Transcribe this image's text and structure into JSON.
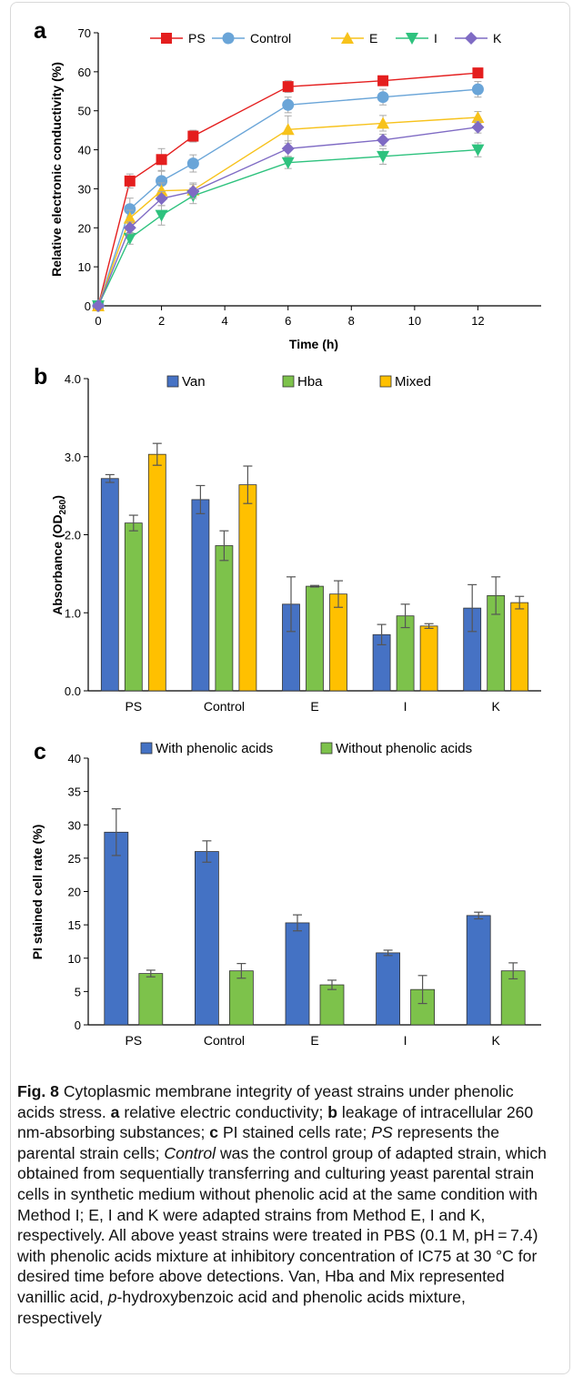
{
  "colors": {
    "ps": "#e41e1e",
    "control": "#6aa5d8",
    "e": "#f7c21b",
    "i": "#2ec27e",
    "k": "#7f6bc4",
    "van": "#4672c4",
    "hba": "#7dc24b",
    "mixed": "#ffc000",
    "with": "#4472c4",
    "without": "#7dc24b",
    "error_bar": "#555555",
    "axis": "#000000"
  },
  "panel_a": {
    "letter": "a",
    "chart_data": {
      "type": "line",
      "ylabel": "Relative electronic conductivity (%)",
      "xlabel": "Time (h)",
      "xlim": [
        0,
        14
      ],
      "ylim": [
        0,
        70
      ],
      "xticks": [
        0,
        2,
        4,
        6,
        8,
        10,
        12
      ],
      "yticks": [
        0,
        10,
        20,
        30,
        40,
        50,
        60,
        70
      ],
      "x": [
        0,
        1,
        2,
        3,
        6,
        9,
        12
      ],
      "legend_position": "top",
      "series": [
        {
          "name": "PS",
          "key": "ps",
          "marker": "square",
          "values": [
            0,
            32,
            37.5,
            43.5,
            56.2,
            57.7,
            59.7
          ],
          "err": [
            0,
            1.8,
            2.8,
            1.5,
            1.5,
            1.0,
            0.8
          ]
        },
        {
          "name": "Control",
          "key": "control",
          "marker": "circle",
          "values": [
            0,
            24.8,
            32,
            36.5,
            51.5,
            53.5,
            55.5
          ],
          "err": [
            0,
            2.8,
            2.5,
            2.2,
            2.0,
            2.0,
            2.0
          ]
        },
        {
          "name": "E",
          "key": "e",
          "marker": "triangle-up",
          "values": [
            0,
            22.5,
            29.5,
            29.7,
            45.2,
            46.8,
            48.3
          ],
          "err": [
            0,
            2.0,
            2.0,
            1.8,
            3.5,
            2.0,
            1.5
          ]
        },
        {
          "name": "I",
          "key": "i",
          "marker": "triangle-down",
          "values": [
            0,
            17.3,
            23.2,
            28.2,
            36.7,
            38.3,
            40.0
          ],
          "err": [
            0,
            1.5,
            2.5,
            2.0,
            1.5,
            2.0,
            1.8
          ]
        },
        {
          "name": "K",
          "key": "k",
          "marker": "diamond",
          "values": [
            0,
            20.0,
            27.5,
            29.3,
            40.3,
            42.5,
            45.8
          ],
          "err": [
            0,
            1.5,
            1.8,
            1.8,
            2.0,
            1.5,
            1.5
          ]
        }
      ]
    }
  },
  "panel_b": {
    "letter": "b",
    "chart_data": {
      "type": "bar",
      "ylabel": "Absorbance (OD",
      "ylabel_sub": "260",
      "ylabel_close": ")",
      "categories": [
        "PS",
        "Control",
        "E",
        "I",
        "K"
      ],
      "ylim": [
        0,
        4.0
      ],
      "yticks": [
        "0.0",
        "1.0",
        "2.0",
        "3.0",
        "4.0"
      ],
      "legend_position": "top",
      "series": [
        {
          "name": "Van",
          "key": "van",
          "values": [
            2.72,
            2.45,
            1.11,
            0.72,
            1.06
          ],
          "err": [
            0.05,
            0.18,
            0.35,
            0.13,
            0.3
          ]
        },
        {
          "name": "Hba",
          "key": "hba",
          "values": [
            2.15,
            1.86,
            1.34,
            0.96,
            1.22
          ],
          "err": [
            0.1,
            0.19,
            0.01,
            0.15,
            0.24
          ]
        },
        {
          "name": "Mixed",
          "key": "mixed",
          "values": [
            3.03,
            2.64,
            1.24,
            0.83,
            1.13
          ],
          "err": [
            0.14,
            0.24,
            0.17,
            0.03,
            0.08
          ]
        }
      ]
    }
  },
  "panel_c": {
    "letter": "c",
    "chart_data": {
      "type": "bar",
      "ylabel": "PI stained cell rate (%)",
      "categories": [
        "PS",
        "Control",
        "E",
        "I",
        "K"
      ],
      "ylim": [
        0,
        40
      ],
      "yticks": [
        0,
        5,
        10,
        15,
        20,
        25,
        30,
        35,
        40
      ],
      "legend_position": "top",
      "series": [
        {
          "name": "With phenolic acids",
          "key": "with",
          "values": [
            28.9,
            26.0,
            15.3,
            10.8,
            16.4
          ],
          "err": [
            3.5,
            1.6,
            1.2,
            0.4,
            0.5
          ]
        },
        {
          "name": "Without phenolic acids",
          "key": "without",
          "values": [
            7.7,
            8.1,
            6.0,
            5.3,
            8.1
          ],
          "err": [
            0.5,
            1.1,
            0.7,
            2.1,
            1.2
          ]
        }
      ]
    }
  },
  "caption": {
    "lead": "Fig. 8",
    "text1": "Cytoplasmic membrane integrity of yeast strains under phenolic acids stress.",
    "a": "a",
    "t_a": "relative electric conductivity;",
    "b": "b",
    "t_b": "leakage of intracellular 260 nm-absorbing substances;",
    "c": "c",
    "t_c": "PI stained cells rate;",
    "ps": "PS",
    "t_ps": "represents the parental strain cells;",
    "control": "Control",
    "t_control": "was the control group of adapted strain, which obtained from sequentially transferring and culturing yeast parental strain cells in synthetic medium without phenolic acid at the same condition with Method I; E, I and K were adapted strains from Method E, I and K, respectively. All above yeast strains were treated in PBS (0.1 M, pH = 7.4) with phenolic acids mixture at inhibitory concentration of IC75 at 30 °C for desired time before above detections. Van, Hba and Mix represented vanillic acid,",
    "p": "p",
    "t_end": "-hydroxybenzoic acid and phenolic acids mixture, respectively"
  }
}
